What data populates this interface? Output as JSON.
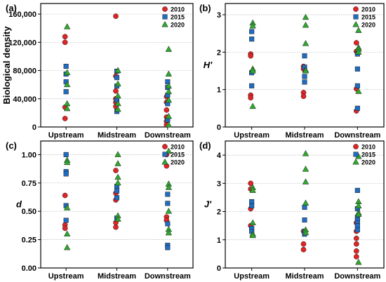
{
  "colors": {
    "2010": "#e02424",
    "2015": "#1f6cc0",
    "2020": "#2fa82f"
  },
  "chart_data": [
    {
      "panel": "(a)",
      "type": "scatter",
      "categories": [
        "Upstream",
        "Midstream",
        "Downstream"
      ],
      "ylabel": "Biological density",
      "ylim": [
        0,
        175000
      ],
      "yticks": [
        "0",
        "40,000",
        "80,000",
        "120,000",
        "160,000"
      ],
      "ytick_values": [
        0,
        40000,
        80000,
        120000,
        160000
      ],
      "grid": true,
      "legend": "top-right",
      "series": [
        {
          "name": "2010",
          "marker": "circle",
          "points": [
            [
              0,
              128000
            ],
            [
              0,
              120000
            ],
            [
              0,
              28000
            ],
            [
              0,
              12000
            ],
            [
              1,
              157000
            ],
            [
              1,
              72000
            ],
            [
              1,
              51000
            ],
            [
              1,
              40000
            ],
            [
              1,
              35000
            ],
            [
              1,
              29000
            ],
            [
              2,
              43000
            ],
            [
              2,
              35000
            ],
            [
              2,
              24000
            ],
            [
              2,
              14000
            ],
            [
              2,
              8000
            ],
            [
              2,
              3000
            ]
          ]
        },
        {
          "name": "2015",
          "marker": "square",
          "points": [
            [
              0,
              86000
            ],
            [
              0,
              75000
            ],
            [
              0,
              64000
            ],
            [
              0,
              50000
            ],
            [
              1,
              79000
            ],
            [
              1,
              70000
            ],
            [
              1,
              58000
            ],
            [
              1,
              38000
            ],
            [
              1,
              22000
            ],
            [
              2,
              64000
            ],
            [
              2,
              56000
            ],
            [
              2,
              45000
            ],
            [
              2,
              33000
            ],
            [
              2,
              10000
            ]
          ]
        },
        {
          "name": "2020",
          "marker": "triangle",
          "points": [
            [
              0,
              142000
            ],
            [
              0,
              77000
            ],
            [
              0,
              60000
            ],
            [
              0,
              33000
            ],
            [
              0,
              26000
            ],
            [
              1,
              80000
            ],
            [
              1,
              61000
            ],
            [
              1,
              44000
            ],
            [
              1,
              33000
            ],
            [
              1,
              25000
            ],
            [
              2,
              110000
            ],
            [
              2,
              75000
            ],
            [
              2,
              58000
            ],
            [
              2,
              50000
            ],
            [
              2,
              38000
            ],
            [
              2,
              15000
            ],
            [
              2,
              3000
            ]
          ]
        }
      ]
    },
    {
      "panel": "(b)",
      "type": "scatter",
      "categories": [
        "Upstream",
        "Midstream",
        "Downstream"
      ],
      "ylabel": "H'",
      "ylim": [
        0,
        3.3
      ],
      "yticks": [
        "0",
        "1",
        "2",
        "3"
      ],
      "ytick_values": [
        0,
        1,
        2,
        3
      ],
      "grid": true,
      "legend": "top-right",
      "series": [
        {
          "name": "2010",
          "marker": "circle",
          "points": [
            [
              0,
              1.95
            ],
            [
              0,
              1.9
            ],
            [
              0,
              0.85
            ],
            [
              0,
              0.78
            ],
            [
              1,
              1.62
            ],
            [
              1,
              1.55
            ],
            [
              1,
              0.92
            ],
            [
              1,
              0.82
            ],
            [
              2,
              2.25
            ],
            [
              2,
              2.02
            ],
            [
              2,
              1.02
            ],
            [
              2,
              0.43
            ]
          ]
        },
        {
          "name": "2015",
          "marker": "square",
          "points": [
            [
              0,
              2.55
            ],
            [
              0,
              2.35
            ],
            [
              0,
              1.45
            ],
            [
              0,
              1.1
            ],
            [
              1,
              1.9
            ],
            [
              1,
              1.6
            ],
            [
              1,
              1.35
            ],
            [
              1,
              1.2
            ],
            [
              2,
              1.95
            ],
            [
              2,
              1.55
            ],
            [
              2,
              1.1
            ],
            [
              2,
              0.5
            ]
          ]
        },
        {
          "name": "2020",
          "marker": "triangle",
          "points": [
            [
              0,
              2.78
            ],
            [
              0,
              2.7
            ],
            [
              0,
              1.55
            ],
            [
              0,
              1.5
            ],
            [
              0,
              0.55
            ],
            [
              1,
              2.93
            ],
            [
              1,
              2.72
            ],
            [
              1,
              2.23
            ],
            [
              1,
              1.52
            ],
            [
              1,
              1.5
            ],
            [
              2,
              2.58
            ],
            [
              2,
              2.12
            ],
            [
              2,
              2.08
            ],
            [
              2,
              2.0
            ],
            [
              2,
              0.95
            ]
          ]
        }
      ]
    },
    {
      "panel": "(c)",
      "type": "scatter",
      "categories": [
        "Upstream",
        "Midstream",
        "Downstream"
      ],
      "ylabel": "d",
      "ylim": [
        0,
        1.12
      ],
      "yticks": [
        "0.00",
        "0.25",
        "0.50",
        "0.75",
        "1.00"
      ],
      "ytick_values": [
        0,
        0.25,
        0.5,
        0.75,
        1.0
      ],
      "grid": true,
      "legend": "top-right",
      "series": [
        {
          "name": "2010",
          "marker": "circle",
          "points": [
            [
              0,
              0.64
            ],
            [
              0,
              0.38
            ],
            [
              0,
              0.35
            ],
            [
              1,
              0.86
            ],
            [
              1,
              0.66
            ],
            [
              1,
              0.6
            ],
            [
              1,
              0.4
            ],
            [
              1,
              0.36
            ],
            [
              2,
              1.0
            ],
            [
              2,
              0.9
            ],
            [
              2,
              0.45
            ],
            [
              2,
              0.42
            ]
          ]
        },
        {
          "name": "2015",
          "marker": "square",
          "points": [
            [
              0,
              1.0
            ],
            [
              0,
              0.85
            ],
            [
              0,
              0.83
            ],
            [
              0,
              0.55
            ],
            [
              0,
              0.42
            ],
            [
              1,
              0.72
            ],
            [
              1,
              0.68
            ],
            [
              1,
              0.62
            ],
            [
              1,
              0.44
            ],
            [
              2,
              0.65
            ],
            [
              2,
              0.57
            ],
            [
              2,
              0.39
            ],
            [
              2,
              0.2
            ],
            [
              2,
              0.18
            ]
          ]
        },
        {
          "name": "2020",
          "marker": "triangle",
          "points": [
            [
              0,
              0.95
            ],
            [
              0,
              0.93
            ],
            [
              0,
              0.53
            ],
            [
              0,
              0.3
            ],
            [
              0,
              0.18
            ],
            [
              1,
              1.0
            ],
            [
              1,
              0.92
            ],
            [
              1,
              0.8
            ],
            [
              1,
              0.75
            ],
            [
              1,
              0.46
            ],
            [
              1,
              0.43
            ],
            [
              2,
              1.03
            ],
            [
              2,
              0.74
            ],
            [
              2,
              0.71
            ],
            [
              2,
              0.5
            ],
            [
              2,
              0.34
            ],
            [
              2,
              0.31
            ]
          ]
        }
      ]
    },
    {
      "panel": "(d)",
      "type": "scatter",
      "categories": [
        "Upstream",
        "Midstream",
        "Downstream"
      ],
      "ylabel": "J'",
      "ylim": [
        0,
        4.5
      ],
      "yticks": [
        "0",
        "1",
        "2",
        "3",
        "4"
      ],
      "ytick_values": [
        0,
        1,
        2,
        3,
        4
      ],
      "grid": true,
      "legend": "top-right",
      "series": [
        {
          "name": "2010",
          "marker": "circle",
          "points": [
            [
              0,
              3.0
            ],
            [
              0,
              2.8
            ],
            [
              0,
              2.1
            ],
            [
              0,
              1.5
            ],
            [
              1,
              1.3
            ],
            [
              1,
              0.85
            ],
            [
              1,
              0.65
            ],
            [
              2,
              1.6
            ],
            [
              2,
              1.3
            ],
            [
              2,
              1.05
            ],
            [
              2,
              0.85
            ],
            [
              2,
              0.6
            ],
            [
              2,
              0.4
            ]
          ]
        },
        {
          "name": "2015",
          "marker": "square",
          "points": [
            [
              0,
              2.35
            ],
            [
              0,
              2.2
            ],
            [
              0,
              1.4
            ],
            [
              0,
              1.3
            ],
            [
              1,
              2.15
            ],
            [
              1,
              1.7
            ],
            [
              1,
              1.3
            ],
            [
              1,
              1.2
            ],
            [
              2,
              2.75
            ],
            [
              2,
              2.1
            ],
            [
              2,
              1.8
            ],
            [
              2,
              1.7
            ],
            [
              2,
              1.6
            ],
            [
              2,
              1.5
            ],
            [
              2,
              1.35
            ]
          ]
        },
        {
          "name": "2020",
          "marker": "triangle",
          "points": [
            [
              0,
              2.85
            ],
            [
              0,
              2.75
            ],
            [
              0,
              1.6
            ],
            [
              0,
              1.2
            ],
            [
              0,
              1.15
            ],
            [
              1,
              4.05
            ],
            [
              1,
              3.5
            ],
            [
              1,
              3.05
            ],
            [
              1,
              2.3
            ],
            [
              1,
              1.35
            ],
            [
              1,
              1.25
            ],
            [
              2,
              3.95
            ],
            [
              2,
              2.35
            ],
            [
              2,
              2.2
            ],
            [
              2,
              1.95
            ],
            [
              2,
              1.9
            ],
            [
              2,
              0.2
            ]
          ]
        }
      ]
    }
  ]
}
